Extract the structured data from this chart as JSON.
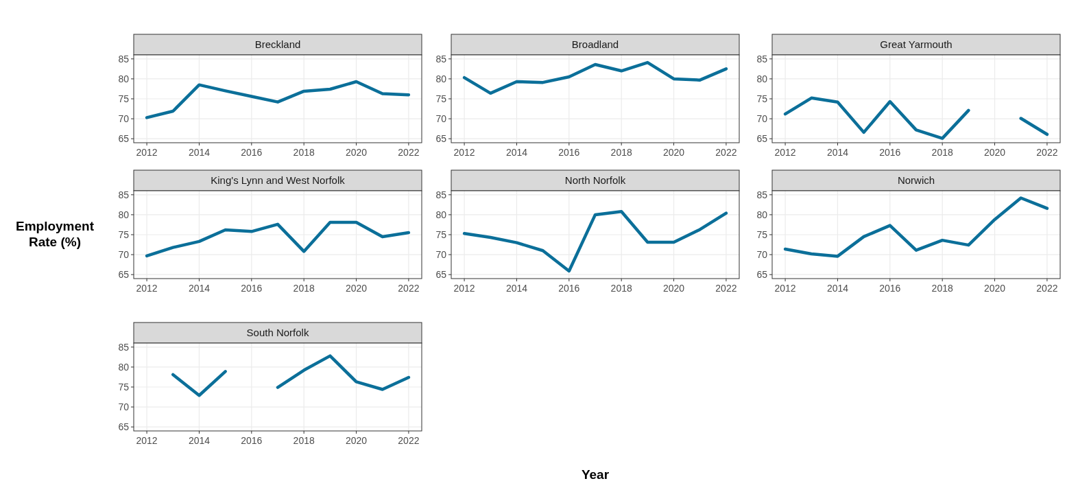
{
  "chart_data": [
    {
      "type": "line",
      "title": "Breckland",
      "x": [
        2012,
        2013,
        2014,
        2015,
        2016,
        2017,
        2018,
        2019,
        2020,
        2021,
        2022
      ],
      "series": [
        {
          "color": "#0b6f99",
          "values": [
            70.3,
            71.9,
            78.5,
            77.0,
            75.6,
            74.2,
            76.9,
            77.4,
            79.3,
            76.3,
            76.0
          ]
        }
      ],
      "xlim": [
        2011.5,
        2022.5
      ],
      "xticks": [
        2012,
        2014,
        2016,
        2018,
        2020,
        2022
      ],
      "ylim": [
        64,
        86
      ],
      "yticks": [
        65,
        70,
        75,
        80,
        85
      ],
      "grid": true,
      "line_style": "solid",
      "marker": "none"
    },
    {
      "type": "line",
      "title": "Broadland",
      "x": [
        2012,
        2013,
        2014,
        2015,
        2016,
        2017,
        2018,
        2019,
        2020,
        2021,
        2022
      ],
      "series": [
        {
          "color": "#0b6f99",
          "values": [
            80.3,
            76.4,
            79.3,
            79.1,
            80.5,
            83.6,
            82.0,
            84.1,
            80.0,
            79.7,
            82.5
          ]
        }
      ],
      "xlim": [
        2011.5,
        2022.5
      ],
      "xticks": [
        2012,
        2014,
        2016,
        2018,
        2020,
        2022
      ],
      "ylim": [
        64,
        86
      ],
      "yticks": [
        65,
        70,
        75,
        80,
        85
      ],
      "grid": true,
      "line_style": "solid",
      "marker": "none"
    },
    {
      "type": "line",
      "title": "Great Yarmouth",
      "x": [
        2012,
        2013,
        2014,
        2015,
        2016,
        2017,
        2018,
        2019,
        2020,
        2021,
        2022
      ],
      "series": [
        {
          "color": "#0b6f99",
          "values": [
            71.2,
            75.2,
            74.2,
            66.6,
            74.3,
            67.2,
            65.1,
            72.1,
            null,
            70.1,
            66.1
          ]
        }
      ],
      "xlim": [
        2011.5,
        2022.5
      ],
      "xticks": [
        2012,
        2014,
        2016,
        2018,
        2020,
        2022
      ],
      "ylim": [
        64,
        86
      ],
      "yticks": [
        65,
        70,
        75,
        80,
        85
      ],
      "grid": true,
      "line_style": "solid",
      "marker": "none"
    },
    {
      "type": "line",
      "title": "King's Lynn and West Norfolk",
      "ylabel": "Employment\nRate (%)",
      "x": [
        2012,
        2013,
        2014,
        2015,
        2016,
        2017,
        2018,
        2019,
        2020,
        2021,
        2022
      ],
      "series": [
        {
          "color": "#0b6f99",
          "values": [
            69.7,
            71.8,
            73.3,
            76.2,
            75.8,
            77.6,
            70.8,
            78.1,
            78.1,
            74.5,
            75.5
          ]
        }
      ],
      "xlim": [
        2011.5,
        2022.5
      ],
      "xticks": [
        2012,
        2014,
        2016,
        2018,
        2020,
        2022
      ],
      "ylim": [
        64,
        86
      ],
      "yticks": [
        65,
        70,
        75,
        80,
        85
      ],
      "grid": true,
      "line_style": "solid",
      "marker": "none"
    },
    {
      "type": "line",
      "title": "North Norfolk",
      "xlabel": "Year",
      "x": [
        2012,
        2013,
        2014,
        2015,
        2016,
        2017,
        2018,
        2019,
        2020,
        2021,
        2022
      ],
      "series": [
        {
          "color": "#0b6f99",
          "values": [
            75.3,
            74.3,
            73.0,
            71.0,
            65.9,
            80.0,
            80.8,
            73.1,
            73.1,
            76.3,
            80.4
          ]
        }
      ],
      "xlim": [
        2011.5,
        2022.5
      ],
      "xticks": [
        2012,
        2014,
        2016,
        2018,
        2020,
        2022
      ],
      "ylim": [
        64,
        86
      ],
      "yticks": [
        65,
        70,
        75,
        80,
        85
      ],
      "grid": true,
      "line_style": "solid",
      "marker": "none"
    },
    {
      "type": "line",
      "title": "Norwich",
      "x": [
        2012,
        2013,
        2014,
        2015,
        2016,
        2017,
        2018,
        2019,
        2020,
        2021,
        2022
      ],
      "series": [
        {
          "color": "#0b6f99",
          "values": [
            71.4,
            70.2,
            69.6,
            74.5,
            77.3,
            71.1,
            73.6,
            72.4,
            78.8,
            84.2,
            81.6
          ]
        }
      ],
      "xlim": [
        2011.5,
        2022.5
      ],
      "xticks": [
        2012,
        2014,
        2016,
        2018,
        2020,
        2022
      ],
      "ylim": [
        64,
        86
      ],
      "yticks": [
        65,
        70,
        75,
        80,
        85
      ],
      "grid": true,
      "line_style": "solid",
      "marker": "none"
    },
    {
      "type": "line",
      "title": "South Norfolk",
      "x": [
        2013,
        2014,
        2015,
        2016,
        2017,
        2018,
        2019,
        2020,
        2021,
        2022
      ],
      "series": [
        {
          "color": "#0b6f99",
          "values": [
            78.1,
            72.9,
            78.9,
            null,
            74.9,
            79.2,
            82.8,
            76.3,
            74.4,
            77.4
          ]
        }
      ],
      "xlim": [
        2011.5,
        2022.5
      ],
      "xticks": [
        2012,
        2014,
        2016,
        2018,
        2020,
        2022
      ],
      "ylim": [
        64,
        86
      ],
      "yticks": [
        65,
        70,
        75,
        80,
        85
      ],
      "grid": true,
      "line_style": "solid",
      "marker": "none"
    }
  ]
}
